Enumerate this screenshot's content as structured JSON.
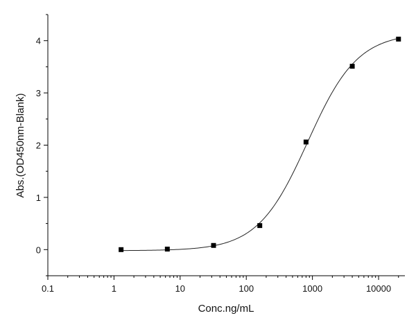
{
  "chart_data": {
    "type": "scatter",
    "xlabel": "Conc.ng/mL",
    "ylabel": "Abs.(OD450nm-Blank)",
    "x_scale": "log",
    "xlim": [
      0.1,
      25000
    ],
    "ylim": [
      -0.5,
      4.5
    ],
    "x_ticks": [
      0.1,
      1,
      10,
      100,
      1000,
      10000
    ],
    "x_tick_labels": [
      "0.1",
      "1",
      "10",
      "100",
      "1000",
      "10000"
    ],
    "y_ticks": [
      0,
      1,
      2,
      3,
      4
    ],
    "y_tick_labels": [
      "0",
      "1",
      "2",
      "3",
      "4"
    ],
    "grid": false,
    "legend": "none",
    "marker": "square",
    "marker_color": "#000000",
    "series": [
      {
        "x": [
          1.28,
          6.4,
          32,
          160,
          800,
          4000,
          20000
        ],
        "y": [
          0.0,
          0.01,
          0.08,
          0.46,
          2.06,
          3.51,
          4.03
        ]
      }
    ],
    "fit_curve": {
      "type": "4PL",
      "bottom": -0.02,
      "top": 4.15,
      "ec50": 850,
      "hill": 1.15
    }
  }
}
